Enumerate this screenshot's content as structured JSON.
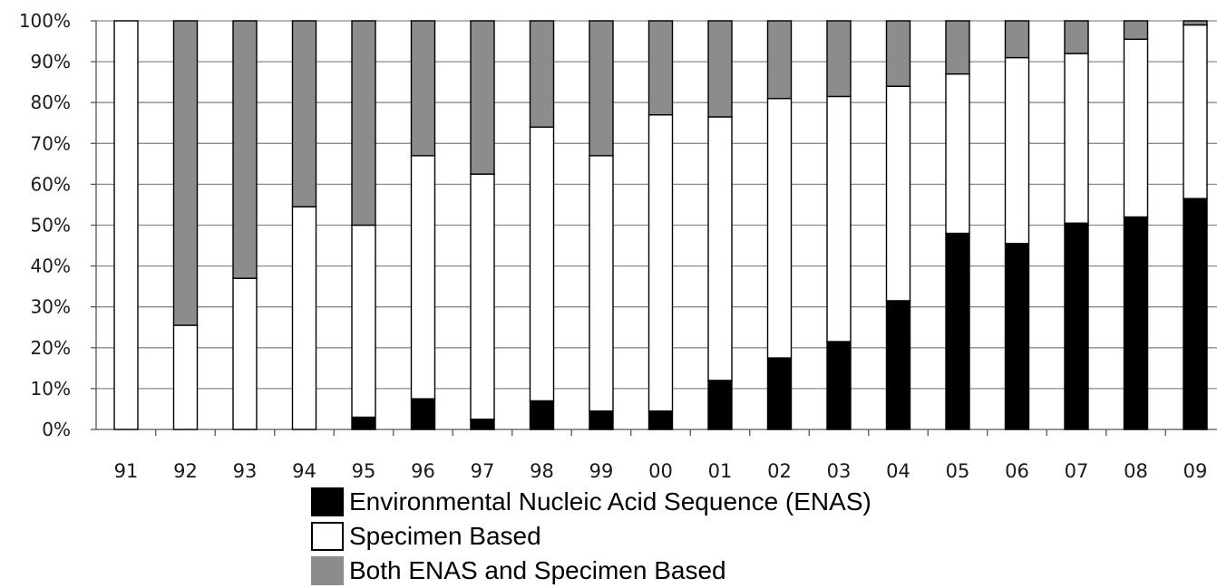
{
  "chart_data": {
    "type": "bar",
    "stacked": true,
    "percent": true,
    "categories": [
      "91",
      "92",
      "93",
      "94",
      "95",
      "96",
      "97",
      "98",
      "99",
      "00",
      "01",
      "02",
      "03",
      "04",
      "05",
      "06",
      "07",
      "08",
      "09"
    ],
    "series": [
      {
        "name": "Environmental Nucleic Acid Sequence (ENAS)",
        "color": "#000000",
        "values": [
          0,
          0,
          0,
          0,
          3,
          7.5,
          2.5,
          7,
          4.5,
          4.5,
          12,
          17.5,
          21.5,
          31.5,
          48,
          45.5,
          50.5,
          52,
          56.5
        ]
      },
      {
        "name": "Specimen Based",
        "color": "#ffffff",
        "values": [
          100,
          25.5,
          37,
          54.5,
          47,
          59.5,
          60,
          67,
          62.5,
          72.5,
          64.5,
          63.5,
          60,
          52.5,
          39,
          45.5,
          41.5,
          43.5,
          42.5
        ]
      },
      {
        "name": "Both ENAS and Specimen Based",
        "color": "#8c8c8c",
        "values": [
          0,
          74.5,
          63,
          45.5,
          50,
          33,
          37.5,
          26,
          33,
          23,
          23.5,
          19,
          18.5,
          16,
          13,
          9,
          8,
          4.5,
          1
        ]
      }
    ],
    "yticks": [
      "0%",
      "10%",
      "20%",
      "30%",
      "40%",
      "50%",
      "60%",
      "70%",
      "80%",
      "90%",
      "100%"
    ],
    "ylim": [
      0,
      100
    ],
    "grid": true,
    "legend": "bottom"
  }
}
